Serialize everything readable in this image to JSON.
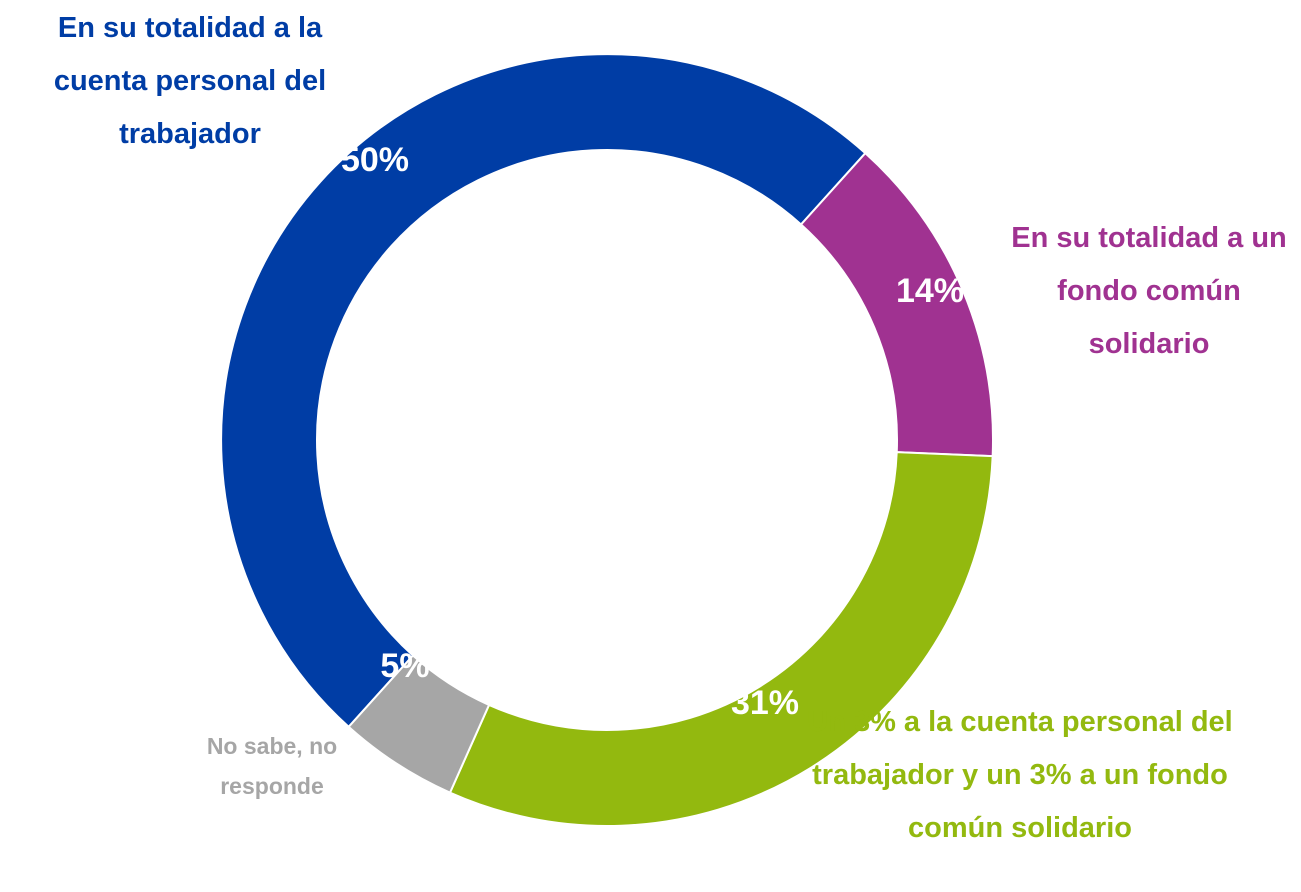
{
  "chart_data": {
    "type": "donut",
    "categories": [
      "En su totalidad a la cuenta personal del trabajador",
      "En su totalidad a un fondo común solidario",
      "Un 3% a la cuenta personal del trabajador y un 3% a un fondo común solidario",
      "No sabe, no responde"
    ],
    "values": [
      50,
      14,
      31,
      5
    ],
    "value_labels": [
      "50%",
      "14%",
      "31%",
      "5%"
    ],
    "colors": [
      "#003da5",
      "#a03291",
      "#93b90f",
      "#a6a6a6"
    ]
  }
}
